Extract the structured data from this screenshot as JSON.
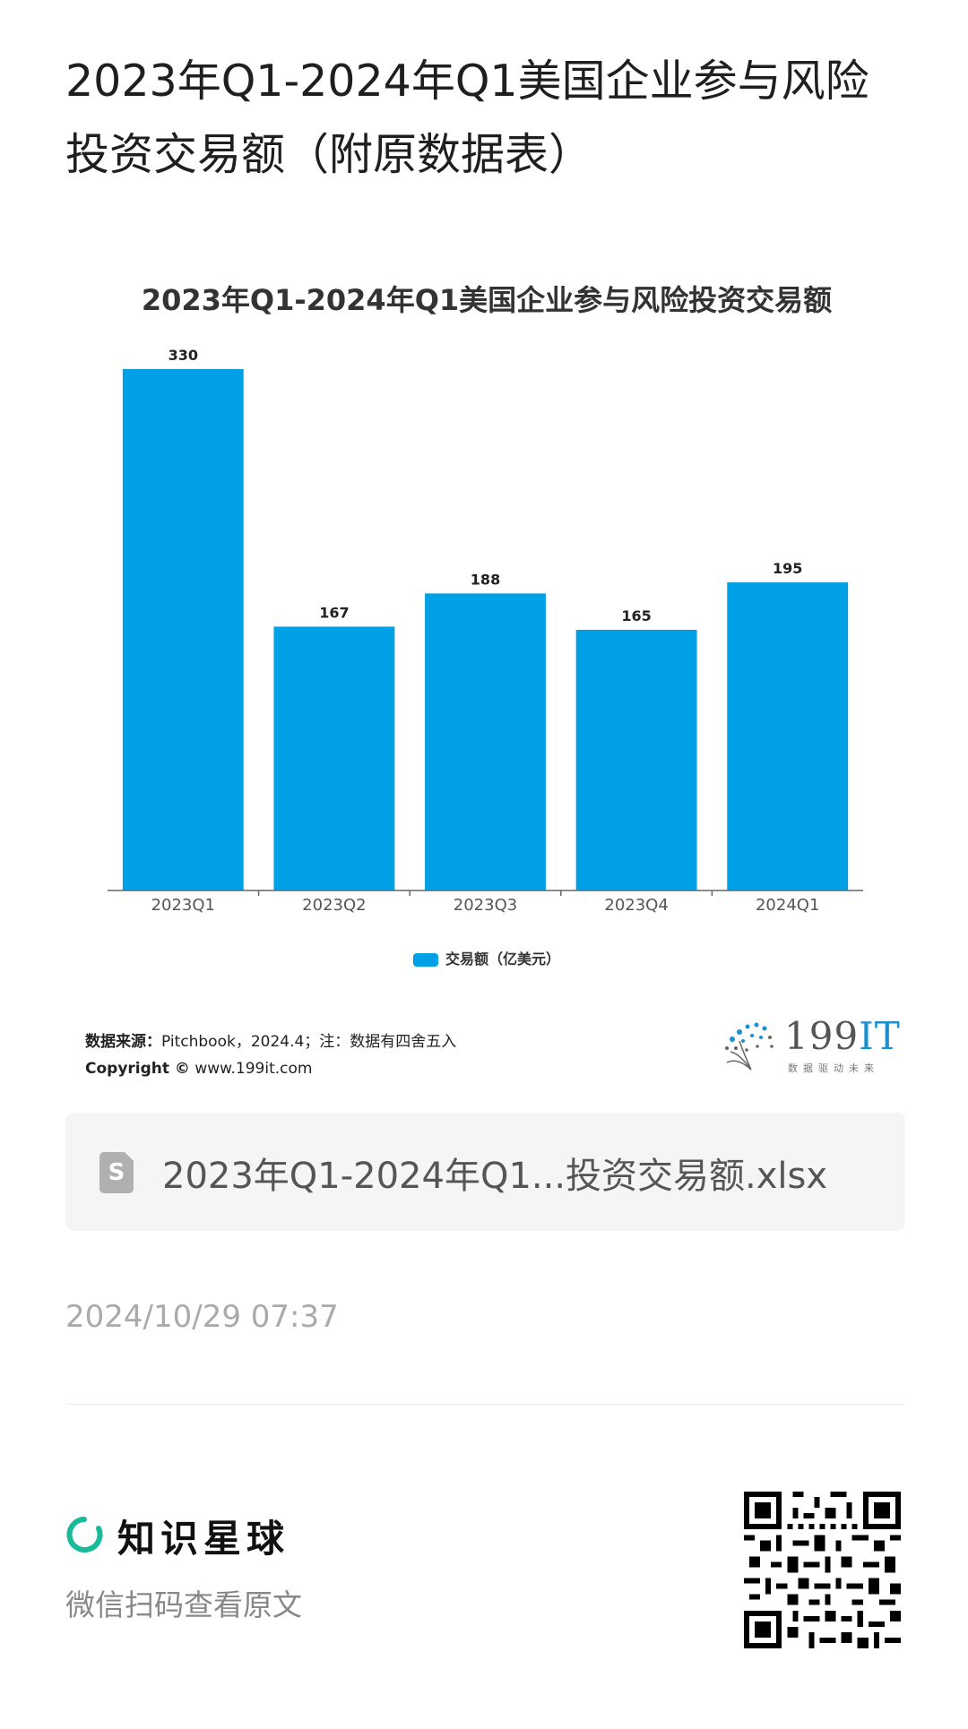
{
  "page": {
    "title": "2023年Q1-2024年Q1美国企业参与风险投资交易额（附原数据表）"
  },
  "chart": {
    "source_label": "数据来源：",
    "source_text": "Pitchbook，2024.4；注：数据有四舍五入",
    "copyright_label": "Copyright ©",
    "copyright_url": "www.199it.com",
    "logo_text_main": "199",
    "logo_text_accent": "IT",
    "logo_sub": "数据驱动未来"
  },
  "chart_data": {
    "type": "bar",
    "title": "2023年Q1-2024年Q1美国企业参与风险投资交易额",
    "categories": [
      "2023Q1",
      "2023Q2",
      "2023Q3",
      "2023Q4",
      "2024Q1"
    ],
    "series": [
      {
        "name": "交易额（亿美元）",
        "values": [
          330,
          167,
          188,
          165,
          195
        ]
      }
    ],
    "ylim": [
      0,
      330
    ],
    "grid": false,
    "legend": "bottom",
    "color": "#00a0e6"
  },
  "attachment": {
    "file_name": "2023年Q1-2024年Q1...投资交易额.xlsx",
    "icon": "spreadsheet-file-icon",
    "icon_glyph": "S"
  },
  "meta": {
    "timestamp": "2024/10/29 07:37"
  },
  "footer": {
    "brand_name": "知识星球",
    "scan_hint": "微信扫码查看原文",
    "brand_color": "#19b99a"
  }
}
